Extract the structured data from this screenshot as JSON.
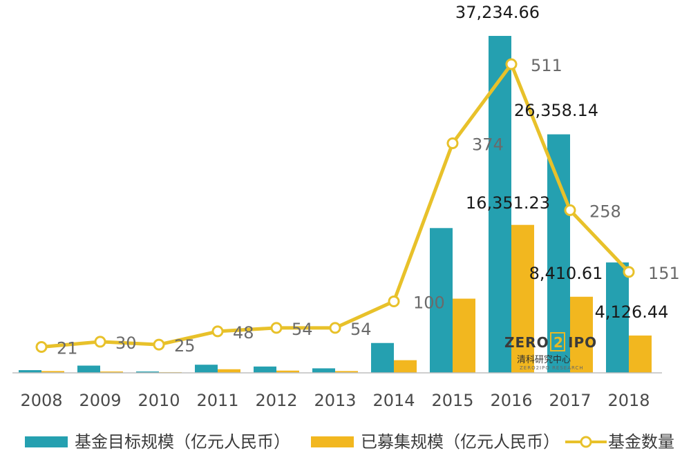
{
  "chart_data": {
    "type": "bar",
    "categories": [
      "2008",
      "2009",
      "2010",
      "2011",
      "2012",
      "2013",
      "2014",
      "2015",
      "2016",
      "2017",
      "2018"
    ],
    "series": [
      {
        "name": "基金目标规模（亿元人民币）",
        "kind": "bar",
        "color": "#25A0B0",
        "values": [
          300,
          800,
          150,
          900,
          700,
          500,
          3300,
          16000,
          37234.66,
          26358.14,
          12200
        ]
      },
      {
        "name": "已募集规模（亿元人民币）",
        "kind": "bar",
        "color": "#F2B71F",
        "values": [
          200,
          150,
          80,
          400,
          250,
          200,
          1400,
          8200,
          16351.23,
          8410.61,
          4126.44
        ]
      },
      {
        "name": "基金数量",
        "kind": "line",
        "color": "#E8C12A",
        "values": [
          21,
          30,
          25,
          48,
          54,
          54,
          100,
          374,
          511,
          258,
          151
        ]
      }
    ],
    "bar_labels": {
      "2016": {
        "target": "37,234.66",
        "raised": "16,351.23"
      },
      "2017": {
        "target": "26,358.14",
        "raised": "8,410.61"
      },
      "2018": {
        "raised": "4,126.44"
      }
    },
    "count_labels": [
      "21",
      "30",
      "25",
      "48",
      "54",
      "54",
      "100",
      "374",
      "511",
      "258",
      "151"
    ],
    "ylim_bars": [
      0,
      37234.66
    ],
    "ylim_line": [
      0,
      600
    ],
    "grid": false,
    "legend_position": "bottom"
  },
  "watermark": {
    "brand": "ZERO2IPO",
    "brand_left": "ZERO",
    "brand_mid": "2",
    "brand_right": "IPO",
    "cn": "清科研究中心",
    "sub": "ZERO2IPO RESEARCH"
  }
}
